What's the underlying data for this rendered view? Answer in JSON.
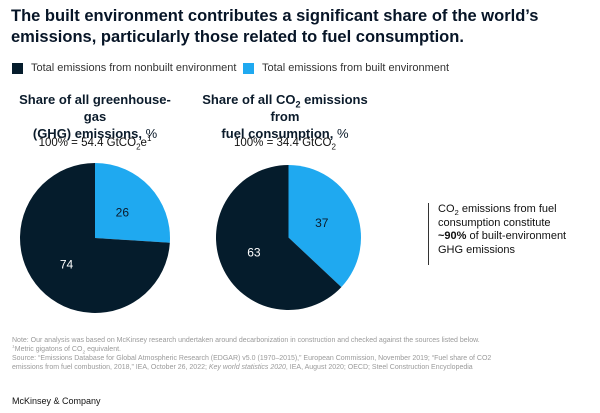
{
  "title": "The built environment contributes a significant share of the world’s emissions, particularly those related to fuel consumption.",
  "legend": [
    {
      "label": "Total emissions from nonbuilt environment",
      "color": "#051c2c"
    },
    {
      "label": "Total emissions from built environment",
      "color": "#1fa9f0"
    }
  ],
  "chart_data": [
    {
      "type": "pie",
      "title_line1": "Share of all greenhouse-gas",
      "title_line2": "(GHG) emissions,",
      "unit": "%",
      "total_label": "100% = 54.4 GtCO",
      "total_sub": "2",
      "total_tail": "e",
      "total_sup": "1",
      "slices": [
        {
          "name": "Total emissions from built environment",
          "value": 26,
          "label": "26",
          "color": "#1fa9f0"
        },
        {
          "name": "Total emissions from nonbuilt environment",
          "value": 74,
          "label": "74",
          "color": "#051c2c"
        }
      ]
    },
    {
      "type": "pie",
      "title_line1_a": "Share of all CO",
      "title_line1_sub": "2",
      "title_line1_b": " emissions from",
      "title_line2": "fuel consumption,",
      "unit": "%",
      "total_label": "100% = 34.4 GtCO",
      "total_sub": "2",
      "slices": [
        {
          "name": "Total emissions from built environment",
          "value": 37,
          "label": "37",
          "color": "#1fa9f0"
        },
        {
          "name": "Total emissions from nonbuilt environment",
          "value": 63,
          "label": "63",
          "color": "#051c2c"
        }
      ]
    }
  ],
  "callout": {
    "line1_a": "CO",
    "line1_sub": "2",
    "line1_b": " emissions from fuel",
    "line2": "consumption constitute",
    "bold": "~90%",
    "line3_rest": " of built-environment",
    "line4": "GHG emissions"
  },
  "notes": {
    "note": "Note: Our analysis was based on McKinsey research undertaken around decarbonization in construction and checked against the sources listed below.",
    "footnote_sup": "1",
    "footnote_a": "Metric gigatons of CO",
    "footnote_sub": "2",
    "footnote_b": " equivalent.",
    "source1": "Source: “Emissions Database for Global Atmospheric Research (EDGAR) v5.0 (1970–2015),” European Commission, November 2019; “Fuel share of CO2",
    "source2_a": "emissions from fuel combustion, 2018,” IEA, October 26, 2022; ",
    "source2_italic": "Key world statistics 2020",
    "source2_b": ", IEA, August 2020; OECD; Steel Construction Encyclopedia"
  },
  "brand": "McKinsey & Company"
}
